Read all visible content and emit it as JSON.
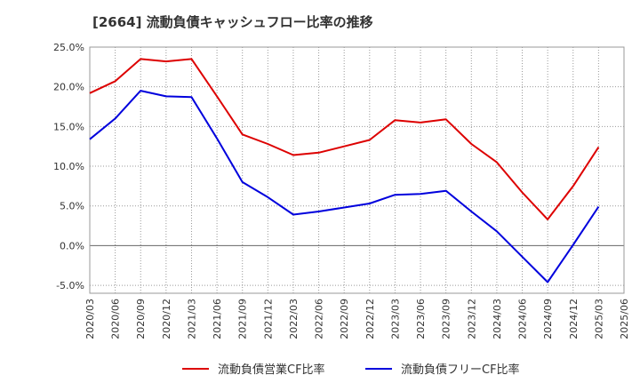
{
  "chart_data": {
    "type": "line",
    "title": "[2664]  流動負債キャッシュフロー比率の推移",
    "x": [
      "2020/03",
      "2020/06",
      "2020/09",
      "2020/12",
      "2021/03",
      "2021/06",
      "2021/09",
      "2021/12",
      "2022/03",
      "2022/06",
      "2022/09",
      "2022/12",
      "2023/03",
      "2023/06",
      "2023/09",
      "2023/12",
      "2024/03",
      "2024/06",
      "2024/09",
      "2024/12",
      "2025/03",
      "2025/06"
    ],
    "y_ticks": [
      "25.0%",
      "20.0%",
      "15.0%",
      "10.0%",
      "5.0%",
      "0.0%",
      "-5.0%"
    ],
    "ylim": [
      -6,
      25
    ],
    "grid": true,
    "legend_position": "bottom",
    "series": [
      {
        "name": "流動負債営業CF比率",
        "color": "#dd0000",
        "values": [
          19.2,
          20.7,
          23.5,
          23.2,
          23.5,
          18.8,
          14.0,
          12.8,
          11.4,
          11.7,
          12.5,
          13.3,
          15.8,
          15.5,
          15.9,
          12.8,
          10.5,
          6.7,
          3.3,
          7.5,
          12.4,
          null
        ]
      },
      {
        "name": "流動負債フリーCF比率",
        "color": "#0000dd",
        "values": [
          13.4,
          16.0,
          19.5,
          18.8,
          18.7,
          13.5,
          8.0,
          6.1,
          3.9,
          4.3,
          4.8,
          5.3,
          6.4,
          6.5,
          6.9,
          4.3,
          1.8,
          -1.4,
          -4.6,
          0.1,
          4.9,
          null
        ]
      }
    ]
  }
}
